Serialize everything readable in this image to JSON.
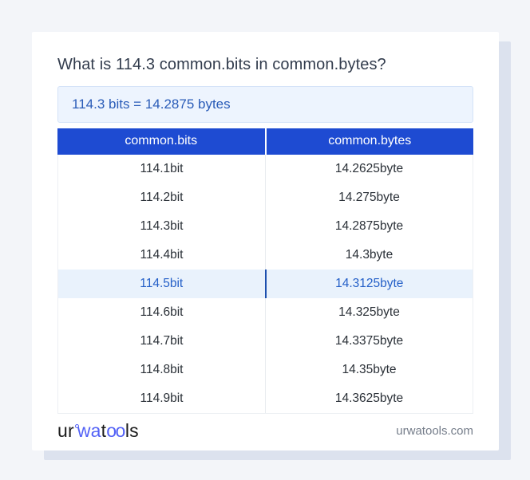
{
  "page": {
    "title": "What is 114.3 common.bits in common.bytes?",
    "result_text": "114.3 bits = 14.2875 bytes"
  },
  "table": {
    "headers": [
      "common.bits",
      "common.bytes"
    ],
    "highlighted_row_index": 4,
    "rows": [
      {
        "bits": "114.1bit",
        "bytes": "14.2625byte"
      },
      {
        "bits": "114.2bit",
        "bytes": "14.275byte"
      },
      {
        "bits": "114.3bit",
        "bytes": "14.2875byte"
      },
      {
        "bits": "114.4bit",
        "bytes": "14.3byte"
      },
      {
        "bits": "114.5bit",
        "bytes": "14.3125byte"
      },
      {
        "bits": "114.6bit",
        "bytes": "14.325byte"
      },
      {
        "bits": "114.7bit",
        "bytes": "14.3375byte"
      },
      {
        "bits": "114.8bit",
        "bytes": "14.35byte"
      },
      {
        "bits": "114.9bit",
        "bytes": "14.3625byte"
      }
    ]
  },
  "footer": {
    "logo": {
      "ur": "ur",
      "wa": "wa",
      "t": "t",
      "oo": "oo",
      "ls": "ls"
    },
    "domain": "urwatools.com"
  },
  "colors": {
    "page_background": "#f3f5f9",
    "card_shadow": "#dce2ee",
    "header_blue": "#1e4bd2",
    "result_box_bg": "#edf4fe",
    "result_box_border": "#d4e3f8",
    "result_text_blue": "#2a5cb8",
    "highlight_row_bg": "#e9f2fc",
    "highlight_row_text": "#2560c8",
    "highlight_divider": "#1c4fae",
    "logo_blue": "#5362f6",
    "title_text": "#323c4d",
    "row_text": "#2a3037",
    "domain_text": "#757d8a"
  }
}
